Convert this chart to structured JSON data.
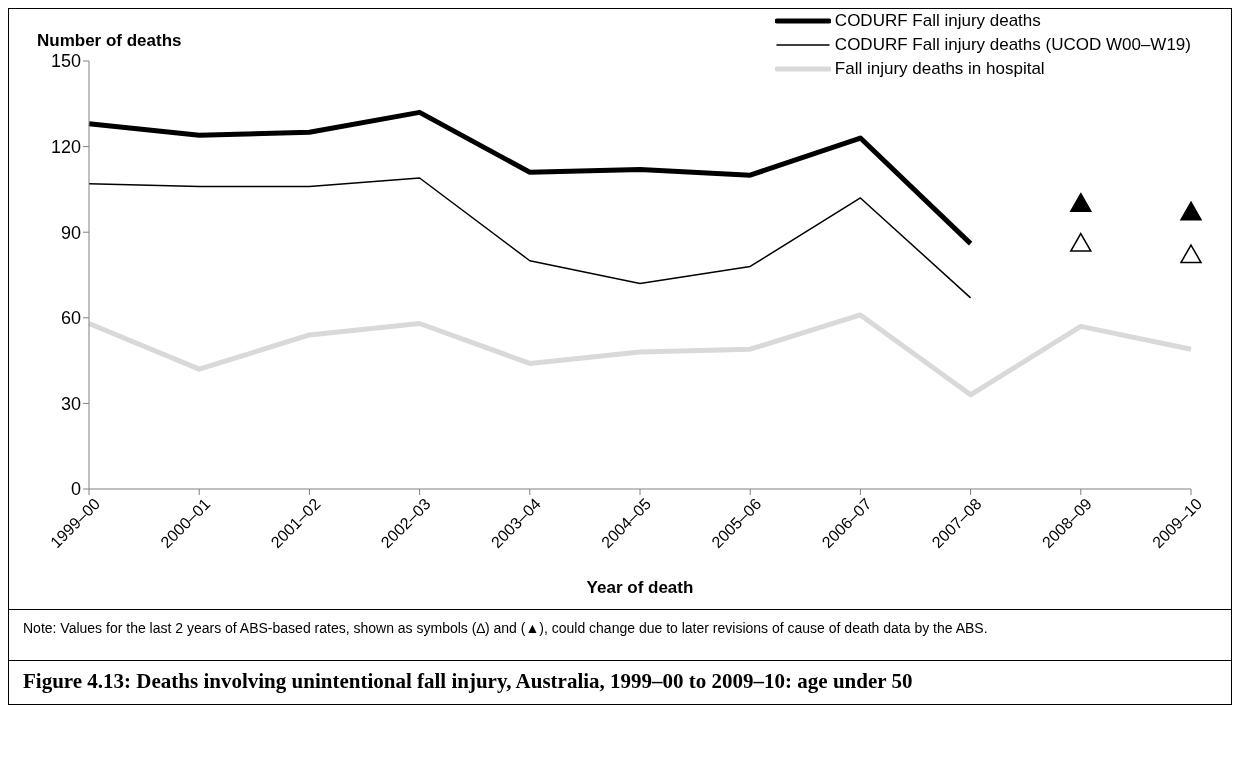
{
  "chart_data": {
    "type": "line",
    "title": "Figure 4.13: Deaths involving unintentional fall injury, Australia, 1999–00 to 2009–10: age under 50",
    "xlabel": "Year of death",
    "ylabel": "Number of deaths",
    "categories": [
      "1999–00",
      "2000–01",
      "2001–02",
      "2002–03",
      "2003–04",
      "2004–05",
      "2005–06",
      "2006–07",
      "2007–08",
      "2008–09",
      "2009–10"
    ],
    "series": [
      {
        "name": "CODURF Fall injury deaths",
        "color": "#000000",
        "values": [
          128,
          124,
          125,
          132,
          111,
          112,
          110,
          123,
          86,
          null,
          null
        ]
      },
      {
        "name": "CODURF Fall injury deaths (UCOD W00–W19)",
        "color": "#000000",
        "values": [
          107,
          106,
          106,
          109,
          80,
          72,
          78,
          102,
          67,
          null,
          null
        ]
      },
      {
        "name": "Fall injury deaths in hospital",
        "color": "#d9d9d9",
        "values": [
          58,
          42,
          54,
          58,
          44,
          48,
          49,
          61,
          33,
          57,
          49
        ]
      },
      {
        "type": "scatter",
        "marker": "triangle",
        "color": "#000000",
        "values": [
          null,
          null,
          null,
          null,
          null,
          null,
          null,
          null,
          null,
          100,
          97
        ]
      },
      {
        "type": "scatter",
        "marker": "triangle",
        "color": "#ffffff",
        "values": [
          null,
          null,
          null,
          null,
          null,
          null,
          null,
          null,
          null,
          86,
          82
        ]
      }
    ],
    "ylim": [
      0,
      150
    ],
    "yticks": [
      0,
      30,
      60,
      90,
      120,
      150
    ],
    "grid": false,
    "legend": "top right",
    "marker": "none",
    "annotations": [
      "Note: Values for the last 2 years of ABS-based rates, shown as symbols (∆) and (▲), could change due to later revisions of cause of death data by the ABS."
    ]
  }
}
